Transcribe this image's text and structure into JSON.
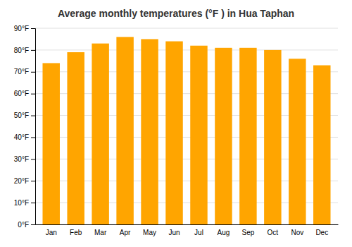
{
  "chart_data": {
    "type": "bar",
    "title": "Average monthly temperatures (°F ) in Hua Taphan",
    "categories": [
      "Jan",
      "Feb",
      "Mar",
      "Apr",
      "May",
      "Jun",
      "Jul",
      "Aug",
      "Sep",
      "Oct",
      "Nov",
      "Dec"
    ],
    "values": [
      74,
      79,
      83,
      86,
      85,
      84,
      82,
      81,
      81,
      80,
      76,
      73
    ],
    "color": "#FFA500",
    "ylim": [
      0,
      90
    ],
    "yticks": [
      {
        "value": 0,
        "label": "0°F"
      },
      {
        "value": 10,
        "label": "10°F"
      },
      {
        "value": 20,
        "label": "20°F"
      },
      {
        "value": 30,
        "label": "30°F"
      },
      {
        "value": 40,
        "label": "40°F"
      },
      {
        "value": 50,
        "label": "50°F"
      },
      {
        "value": 60,
        "label": "60°F"
      },
      {
        "value": 70,
        "label": "70°F"
      },
      {
        "value": 80,
        "label": "80°F"
      },
      {
        "value": 90,
        "label": "90°F"
      }
    ],
    "grid": true
  }
}
